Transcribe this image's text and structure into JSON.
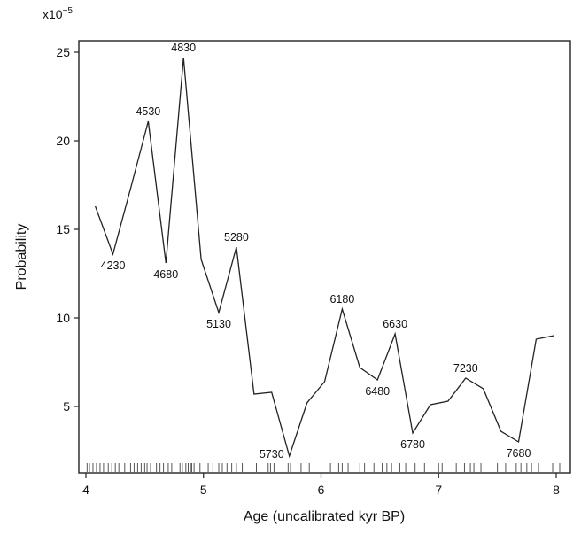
{
  "chart_data": {
    "type": "line",
    "xlabel": "Age (uncalibrated kyr BP)",
    "ylabel": "Probability",
    "y_multiplier_label": "x10",
    "y_multiplier_exponent": "−5",
    "xlim": [
      3.95,
      8.1
    ],
    "ylim": [
      1.0,
      25.6
    ],
    "x_ticks": [
      4,
      5,
      6,
      7,
      8
    ],
    "y_ticks": [
      5,
      10,
      15,
      20,
      25
    ],
    "grid": false,
    "series": [
      {
        "x": [
          4.08,
          4.23,
          4.38,
          4.53,
          4.68,
          4.83,
          4.98,
          5.13,
          5.28,
          5.43,
          5.58,
          5.73,
          5.88,
          6.03,
          6.18,
          6.33,
          6.48,
          6.63,
          6.78,
          6.93,
          7.08,
          7.23,
          7.38,
          7.53,
          7.68,
          7.83,
          7.98
        ],
        "y": [
          16.3,
          13.6,
          17.3,
          21.1,
          13.1,
          24.7,
          13.3,
          10.3,
          14.0,
          5.7,
          5.8,
          2.2,
          5.2,
          6.4,
          10.5,
          7.2,
          6.5,
          9.1,
          3.5,
          5.1,
          5.3,
          6.6,
          6.0,
          3.6,
          3.0,
          8.8,
          9.0
        ]
      }
    ],
    "annotations": [
      {
        "text": "4230",
        "x": 4.23,
        "y": 13.6,
        "pos": "below"
      },
      {
        "text": "4530",
        "x": 4.53,
        "y": 21.1,
        "pos": "above"
      },
      {
        "text": "4680",
        "x": 4.68,
        "y": 13.1,
        "pos": "below"
      },
      {
        "text": "4830",
        "x": 4.83,
        "y": 24.7,
        "pos": "above"
      },
      {
        "text": "5130",
        "x": 5.13,
        "y": 10.3,
        "pos": "below"
      },
      {
        "text": "5280",
        "x": 5.28,
        "y": 14.0,
        "pos": "above"
      },
      {
        "text": "5730",
        "x": 5.73,
        "y": 2.2,
        "pos": "left"
      },
      {
        "text": "6180",
        "x": 6.18,
        "y": 10.5,
        "pos": "above"
      },
      {
        "text": "6480",
        "x": 6.48,
        "y": 6.5,
        "pos": "below"
      },
      {
        "text": "6630",
        "x": 6.63,
        "y": 9.1,
        "pos": "above"
      },
      {
        "text": "6780",
        "x": 6.78,
        "y": 3.5,
        "pos": "below"
      },
      {
        "text": "7230",
        "x": 7.23,
        "y": 6.6,
        "pos": "above"
      },
      {
        "text": "7680",
        "x": 7.68,
        "y": 3.0,
        "pos": "below"
      }
    ],
    "rug": [
      4.01,
      4.03,
      4.06,
      4.09,
      4.12,
      4.15,
      4.19,
      4.22,
      4.25,
      4.28,
      4.33,
      4.38,
      4.41,
      4.44,
      4.47,
      4.5,
      4.52,
      4.55,
      4.6,
      4.63,
      4.66,
      4.7,
      4.73,
      4.8,
      4.82,
      4.85,
      4.87,
      4.89,
      4.9,
      4.92,
      4.97,
      5.04,
      5.08,
      5.13,
      5.16,
      5.2,
      5.24,
      5.28,
      5.33,
      5.45,
      5.55,
      5.57,
      5.6,
      5.72,
      5.74,
      5.83,
      5.9,
      6.0,
      6.08,
      6.15,
      6.18,
      6.23,
      6.33,
      6.37,
      6.45,
      6.52,
      6.56,
      6.6,
      6.67,
      6.72,
      6.8,
      6.88,
      7.0,
      7.03,
      7.15,
      7.22,
      7.27,
      7.3,
      7.36,
      7.5,
      7.57,
      7.66,
      7.7,
      7.75,
      7.79,
      7.85,
      7.97,
      8.03
    ]
  }
}
